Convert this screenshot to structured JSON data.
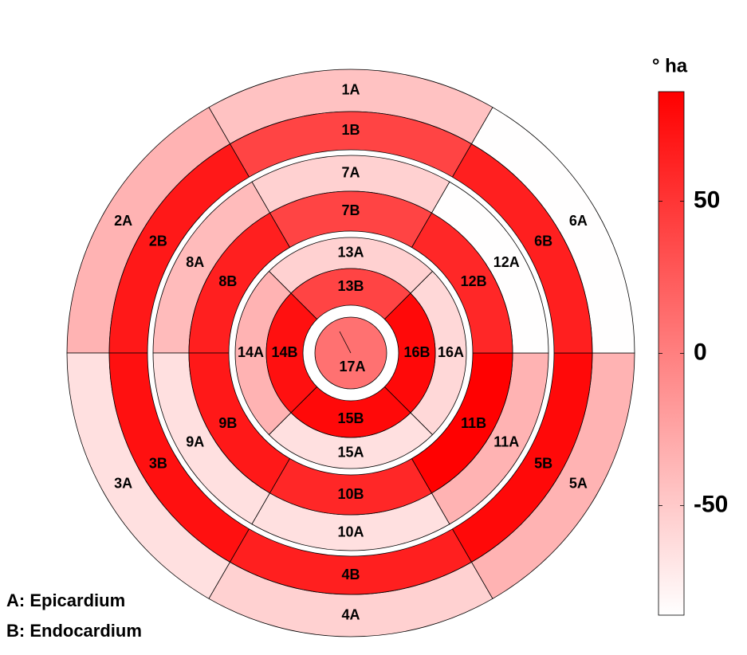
{
  "chart_data": {
    "type": "bullseye",
    "colorbar_label": "° ha",
    "legend_text": [
      "A: Epicardium",
      "B: Endocardium"
    ],
    "colormap": [
      "#ffffff",
      "#ff0000"
    ],
    "clim": [
      -86,
      86
    ],
    "cticks": [
      -50,
      0,
      50
    ],
    "segments": [
      {
        "label": "1A",
        "value": -45
      },
      {
        "label": "1B",
        "value": 40
      },
      {
        "label": "2A",
        "value": -35
      },
      {
        "label": "2B",
        "value": 70
      },
      {
        "label": "3A",
        "value": -65
      },
      {
        "label": "3B",
        "value": 75
      },
      {
        "label": "4A",
        "value": -55
      },
      {
        "label": "4B",
        "value": 65
      },
      {
        "label": "5A",
        "value": -35
      },
      {
        "label": "5B",
        "value": 80
      },
      {
        "label": "6A",
        "value": -85
      },
      {
        "label": "6B",
        "value": 65
      },
      {
        "label": "7A",
        "value": -55
      },
      {
        "label": "7B",
        "value": 40
      },
      {
        "label": "8A",
        "value": -40
      },
      {
        "label": "8B",
        "value": 65
      },
      {
        "label": "9A",
        "value": -65
      },
      {
        "label": "9B",
        "value": 70
      },
      {
        "label": "10A",
        "value": -65
      },
      {
        "label": "10B",
        "value": 60
      },
      {
        "label": "11A",
        "value": -35
      },
      {
        "label": "11B",
        "value": 85
      },
      {
        "label": "12A",
        "value": -85
      },
      {
        "label": "12B",
        "value": 60
      },
      {
        "label": "13A",
        "value": -55
      },
      {
        "label": "13B",
        "value": 40
      },
      {
        "label": "14A",
        "value": -35
      },
      {
        "label": "14B",
        "value": 75
      },
      {
        "label": "15A",
        "value": -65
      },
      {
        "label": "15B",
        "value": 80
      },
      {
        "label": "16A",
        "value": -60
      },
      {
        "label": "16B",
        "value": 80
      },
      {
        "label": "17A",
        "value": 10
      }
    ]
  }
}
